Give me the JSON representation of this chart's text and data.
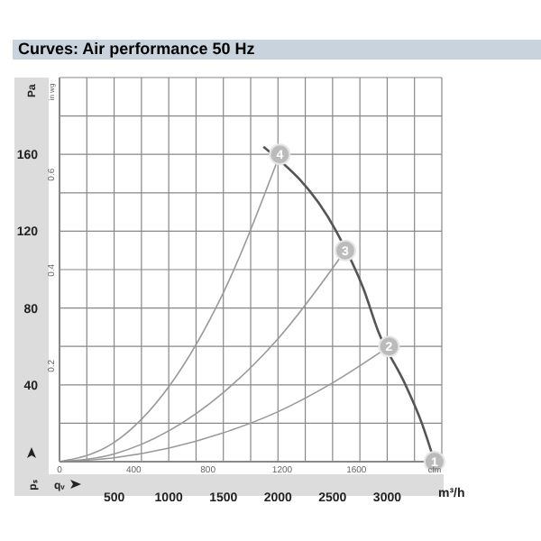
{
  "chart_data": {
    "type": "line",
    "title": "Curves: Air performance 50 Hz",
    "xlabel": "m³/h",
    "ylabel": "Pa",
    "y2label": "in wg",
    "x2label": "cfm",
    "annotations": [
      "pₛ",
      "qᵥ",
      {
        "text": "1",
        "x": 3433,
        "y": 0
      },
      {
        "text": "2",
        "x": 3017,
        "y": 60
      },
      {
        "text": "3",
        "x": 2617,
        "y": 110
      },
      {
        "text": "4",
        "x": 2017,
        "y": 160
      }
    ],
    "xlim": [
      0,
      3500
    ],
    "xticks": [
      {
        "value": 0,
        "label": null
      },
      {
        "value": 250,
        "label": null
      },
      500,
      {
        "value": 750,
        "label": null
      },
      1000,
      {
        "value": 1250,
        "label": null
      },
      1500,
      {
        "value": 1750,
        "label": null
      },
      2000,
      {
        "value": 2250,
        "label": null
      },
      2500,
      {
        "value": 2750,
        "label": null
      },
      3000,
      {
        "value": 3250,
        "label": null
      },
      {
        "value": 3500,
        "label": null
      }
    ],
    "ylim": [
      0,
      200
    ],
    "yticks": [
      {
        "value": 0,
        "label": null
      },
      {
        "value": 20,
        "label": null
      },
      40,
      {
        "value": 60,
        "label": null
      },
      80,
      {
        "value": 100,
        "label": null
      },
      120,
      {
        "value": 140,
        "label": null
      },
      160,
      {
        "value": 180,
        "label": null
      },
      {
        "value": 200,
        "label": null
      }
    ],
    "y2lim": [
      0,
      0.803
    ],
    "y2ticks": [
      0.2,
      0.4,
      0.6
    ],
    "x2lim": [
      0,
      2060
    ],
    "x2ticks": [
      0,
      400,
      800,
      1200,
      1600
    ],
    "grid": true,
    "series": [
      {
        "type": "line",
        "color": "#555555",
        "x": [
          1867,
          2533,
          2783,
          2917,
          3167,
          3317,
          3433
        ],
        "values": [
          164,
          120,
          90,
          68,
          40,
          20,
          0
        ]
      },
      {
        "type": "line",
        "color": "#999999",
        "x": [
          0,
          500,
          1000,
          1500,
          2017
        ],
        "values": [
          0,
          10,
          39,
          88,
          160
        ]
      },
      {
        "type": "line",
        "color": "#999999",
        "x": [
          0,
          500,
          1000,
          1500,
          2000,
          2617
        ],
        "values": [
          0,
          4,
          16,
          36,
          64,
          110
        ]
      },
      {
        "type": "line",
        "color": "#999999",
        "x": [
          0,
          500,
          1000,
          1500,
          2000,
          2500,
          3017
        ],
        "values": [
          0,
          2,
          7,
          15,
          26,
          41,
          60
        ]
      },
      {
        "type": "scatter",
        "color": "#bbbbbb",
        "marker": "circle",
        "x": [
          3433,
          3017,
          2617,
          2017
        ],
        "values": [
          0,
          60,
          110,
          160
        ]
      }
    ]
  }
}
